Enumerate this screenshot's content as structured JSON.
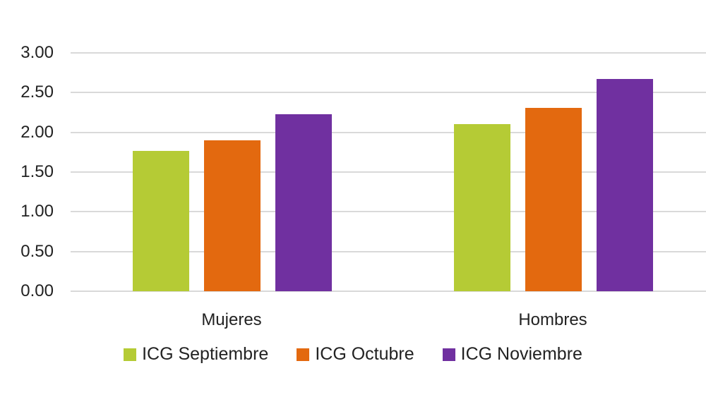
{
  "chart_data": {
    "type": "bar",
    "title": "",
    "xlabel": "",
    "ylabel": "",
    "categories": [
      "Mujeres",
      "Hombres"
    ],
    "series": [
      {
        "name": "ICG Septiembre",
        "color": "#b5cb35",
        "values": [
          1.77,
          2.1
        ]
      },
      {
        "name": "ICG Octubre",
        "color": "#e3690f",
        "values": [
          1.9,
          2.31
        ]
      },
      {
        "name": "ICG Noviembre",
        "color": "#7030a0",
        "values": [
          2.23,
          2.67
        ]
      }
    ],
    "ylim": [
      0,
      3
    ],
    "yticks": [
      "0.00",
      "0.50",
      "1.00",
      "1.50",
      "2.00",
      "2.50",
      "3.00"
    ],
    "grid": true,
    "legend_position": "bottom"
  }
}
